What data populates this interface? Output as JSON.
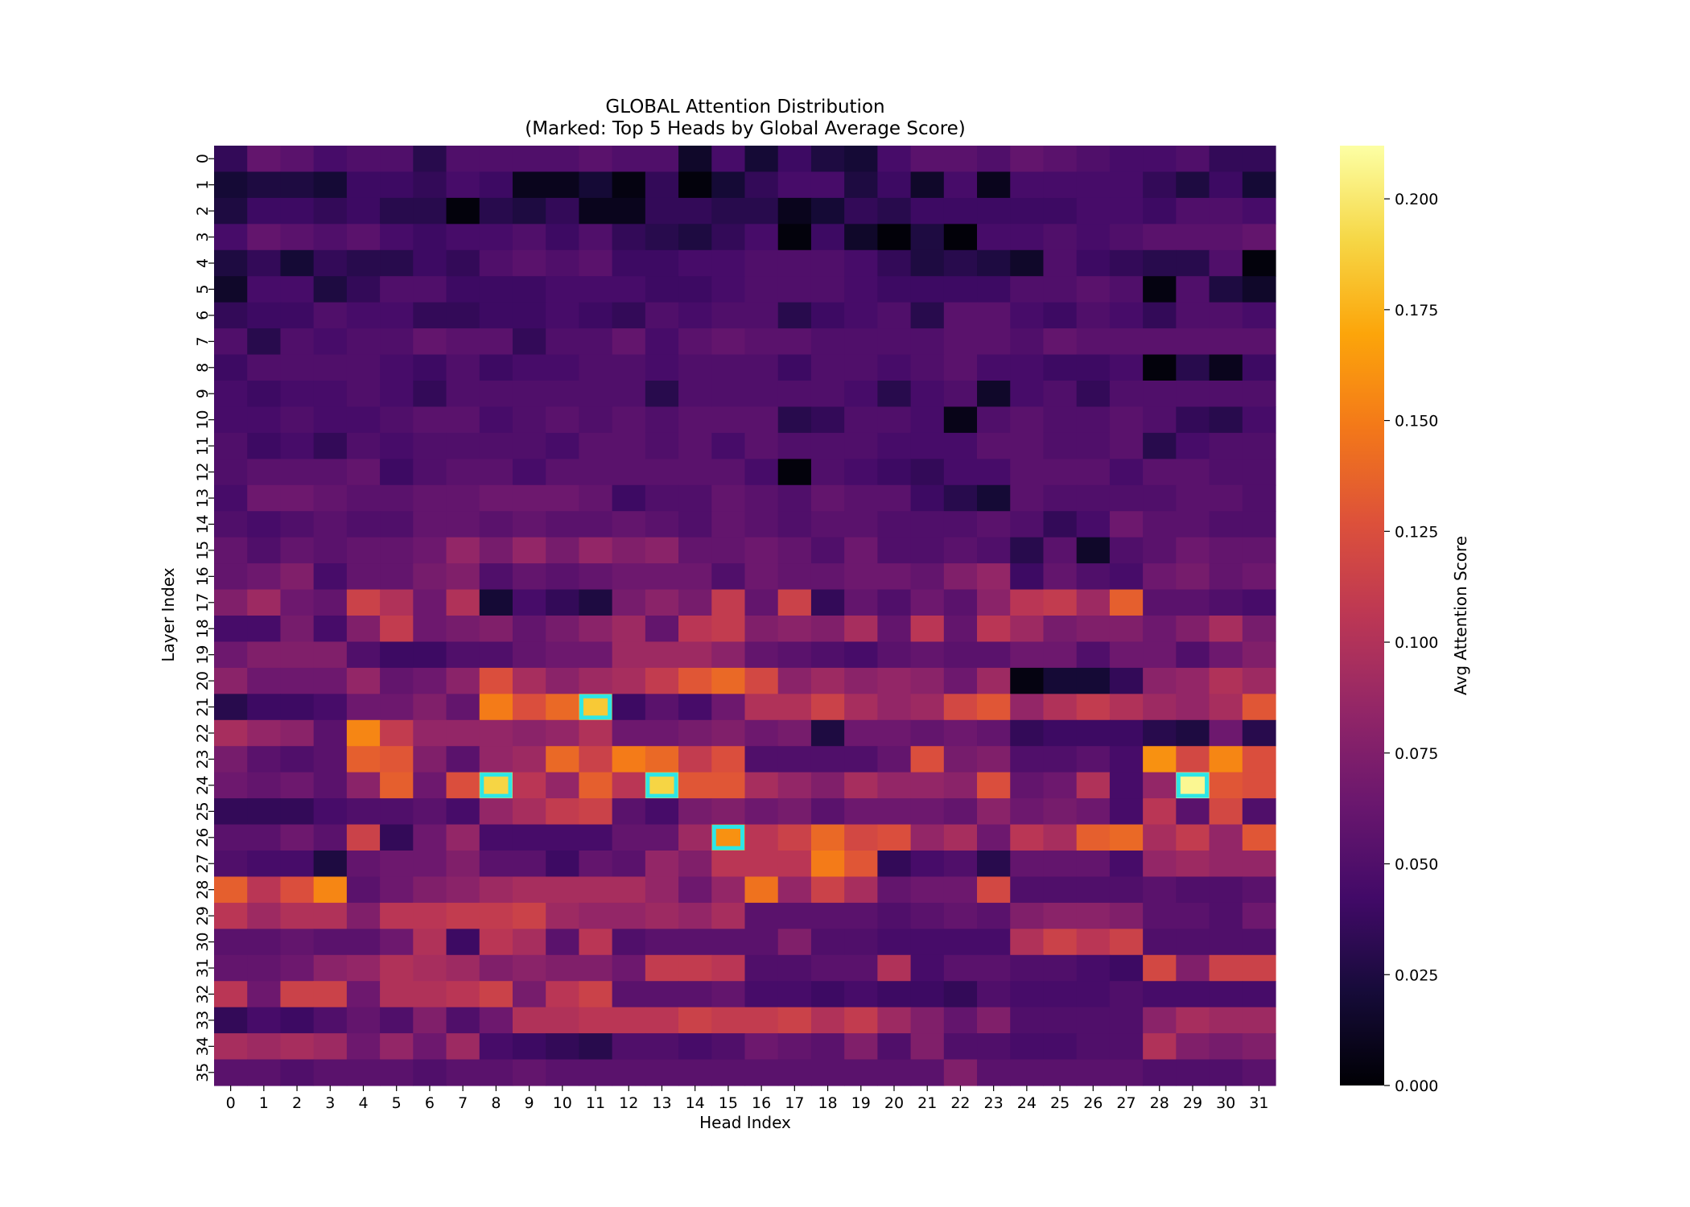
{
  "chart_data": {
    "type": "heatmap",
    "title": "GLOBAL Attention Distribution",
    "subtitle": "(Marked: Top 5 Heads by Global Average Score)",
    "xlabel": "Head Index",
    "ylabel": "Layer Index",
    "colorbar_label": "Avg Attention Score",
    "colormap": "inferno",
    "vmin": 0.0,
    "vmax": 0.212,
    "colorbar_ticks": [
      "0.000",
      "0.025",
      "0.050",
      "0.075",
      "0.100",
      "0.125",
      "0.150",
      "0.175",
      "0.200"
    ],
    "colorbar_tick_values": [
      0.0,
      0.025,
      0.05,
      0.075,
      0.1,
      0.125,
      0.15,
      0.175,
      0.2
    ],
    "x_ticks": [
      "0",
      "1",
      "2",
      "3",
      "4",
      "5",
      "6",
      "7",
      "8",
      "9",
      "10",
      "11",
      "12",
      "13",
      "14",
      "15",
      "16",
      "17",
      "18",
      "19",
      "20",
      "21",
      "22",
      "23",
      "24",
      "25",
      "26",
      "27",
      "28",
      "29",
      "30",
      "31"
    ],
    "y_ticks": [
      "0",
      "1",
      "2",
      "3",
      "4",
      "5",
      "6",
      "7",
      "8",
      "9",
      "10",
      "11",
      "12",
      "13",
      "14",
      "15",
      "16",
      "17",
      "18",
      "19",
      "20",
      "21",
      "22",
      "23",
      "24",
      "25",
      "26",
      "27",
      "28",
      "29",
      "30",
      "31",
      "32",
      "33",
      "34",
      "35"
    ],
    "highlight_color": "#2ee6e6",
    "highlighted_cells": [
      {
        "layer": 21,
        "head": 11
      },
      {
        "layer": 24,
        "head": 8
      },
      {
        "layer": 24,
        "head": 13
      },
      {
        "layer": 24,
        "head": 29
      },
      {
        "layer": 26,
        "head": 15
      }
    ],
    "values": [
      [
        0.035,
        0.06,
        0.055,
        0.045,
        0.05,
        0.05,
        0.03,
        0.05,
        0.05,
        0.05,
        0.05,
        0.055,
        0.05,
        0.05,
        0.015,
        0.045,
        0.02,
        0.04,
        0.025,
        0.02,
        0.045,
        0.055,
        0.055,
        0.05,
        0.06,
        0.055,
        0.05,
        0.045,
        0.045,
        0.05,
        0.035,
        0.035
      ],
      [
        0.02,
        0.025,
        0.025,
        0.02,
        0.04,
        0.04,
        0.035,
        0.045,
        0.04,
        0.01,
        0.01,
        0.02,
        0.005,
        0.035,
        0.003,
        0.02,
        0.035,
        0.045,
        0.045,
        0.025,
        0.04,
        0.015,
        0.045,
        0.01,
        0.045,
        0.045,
        0.045,
        0.045,
        0.035,
        0.025,
        0.04,
        0.02
      ],
      [
        0.025,
        0.04,
        0.04,
        0.035,
        0.04,
        0.03,
        0.03,
        0.003,
        0.03,
        0.025,
        0.035,
        0.01,
        0.01,
        0.035,
        0.035,
        0.03,
        0.03,
        0.01,
        0.02,
        0.035,
        0.03,
        0.04,
        0.04,
        0.04,
        0.04,
        0.04,
        0.045,
        0.045,
        0.04,
        0.05,
        0.05,
        0.045
      ],
      [
        0.045,
        0.06,
        0.055,
        0.05,
        0.055,
        0.045,
        0.04,
        0.045,
        0.045,
        0.05,
        0.04,
        0.05,
        0.035,
        0.03,
        0.025,
        0.035,
        0.045,
        0.003,
        0.04,
        0.015,
        0.002,
        0.025,
        0.002,
        0.045,
        0.045,
        0.05,
        0.045,
        0.05,
        0.055,
        0.055,
        0.055,
        0.06
      ],
      [
        0.025,
        0.035,
        0.02,
        0.035,
        0.03,
        0.03,
        0.04,
        0.035,
        0.05,
        0.055,
        0.05,
        0.055,
        0.04,
        0.04,
        0.045,
        0.045,
        0.05,
        0.05,
        0.05,
        0.045,
        0.035,
        0.025,
        0.03,
        0.025,
        0.015,
        0.05,
        0.04,
        0.035,
        0.03,
        0.03,
        0.05,
        0.003
      ],
      [
        0.015,
        0.045,
        0.045,
        0.025,
        0.035,
        0.05,
        0.05,
        0.04,
        0.04,
        0.04,
        0.045,
        0.045,
        0.045,
        0.04,
        0.04,
        0.045,
        0.05,
        0.05,
        0.05,
        0.045,
        0.04,
        0.04,
        0.04,
        0.04,
        0.05,
        0.05,
        0.055,
        0.05,
        0.005,
        0.05,
        0.025,
        0.015
      ],
      [
        0.035,
        0.04,
        0.04,
        0.05,
        0.045,
        0.045,
        0.035,
        0.035,
        0.04,
        0.04,
        0.045,
        0.04,
        0.035,
        0.05,
        0.045,
        0.05,
        0.05,
        0.03,
        0.04,
        0.045,
        0.05,
        0.03,
        0.055,
        0.055,
        0.045,
        0.04,
        0.05,
        0.045,
        0.035,
        0.05,
        0.05,
        0.045
      ],
      [
        0.05,
        0.03,
        0.05,
        0.045,
        0.05,
        0.05,
        0.06,
        0.055,
        0.055,
        0.035,
        0.05,
        0.05,
        0.06,
        0.045,
        0.055,
        0.06,
        0.055,
        0.055,
        0.05,
        0.05,
        0.05,
        0.05,
        0.055,
        0.055,
        0.05,
        0.06,
        0.055,
        0.055,
        0.055,
        0.055,
        0.055,
        0.055
      ],
      [
        0.04,
        0.05,
        0.05,
        0.05,
        0.05,
        0.045,
        0.04,
        0.05,
        0.04,
        0.045,
        0.045,
        0.05,
        0.05,
        0.045,
        0.05,
        0.05,
        0.05,
        0.04,
        0.05,
        0.05,
        0.045,
        0.05,
        0.055,
        0.045,
        0.045,
        0.04,
        0.04,
        0.045,
        0.003,
        0.03,
        0.01,
        0.04
      ],
      [
        0.045,
        0.04,
        0.045,
        0.045,
        0.05,
        0.045,
        0.035,
        0.05,
        0.05,
        0.05,
        0.05,
        0.05,
        0.05,
        0.03,
        0.05,
        0.05,
        0.05,
        0.05,
        0.05,
        0.045,
        0.03,
        0.045,
        0.05,
        0.015,
        0.045,
        0.05,
        0.035,
        0.05,
        0.05,
        0.05,
        0.05,
        0.05
      ],
      [
        0.045,
        0.045,
        0.05,
        0.045,
        0.045,
        0.05,
        0.055,
        0.055,
        0.045,
        0.05,
        0.055,
        0.05,
        0.055,
        0.05,
        0.055,
        0.055,
        0.055,
        0.03,
        0.035,
        0.05,
        0.05,
        0.045,
        0.008,
        0.05,
        0.055,
        0.05,
        0.05,
        0.055,
        0.05,
        0.035,
        0.03,
        0.045
      ],
      [
        0.05,
        0.04,
        0.045,
        0.035,
        0.05,
        0.045,
        0.05,
        0.05,
        0.05,
        0.05,
        0.045,
        0.055,
        0.055,
        0.05,
        0.055,
        0.045,
        0.055,
        0.05,
        0.05,
        0.05,
        0.045,
        0.045,
        0.045,
        0.055,
        0.055,
        0.05,
        0.05,
        0.055,
        0.03,
        0.045,
        0.05,
        0.05
      ],
      [
        0.05,
        0.055,
        0.055,
        0.055,
        0.06,
        0.04,
        0.05,
        0.055,
        0.055,
        0.045,
        0.055,
        0.055,
        0.055,
        0.055,
        0.055,
        0.055,
        0.045,
        0.003,
        0.05,
        0.045,
        0.04,
        0.035,
        0.045,
        0.045,
        0.055,
        0.055,
        0.055,
        0.045,
        0.055,
        0.055,
        0.05,
        0.05
      ],
      [
        0.045,
        0.065,
        0.065,
        0.06,
        0.055,
        0.055,
        0.06,
        0.06,
        0.065,
        0.065,
        0.065,
        0.06,
        0.04,
        0.05,
        0.05,
        0.06,
        0.055,
        0.05,
        0.06,
        0.055,
        0.055,
        0.04,
        0.03,
        0.02,
        0.055,
        0.05,
        0.05,
        0.05,
        0.05,
        0.055,
        0.055,
        0.05
      ],
      [
        0.05,
        0.045,
        0.05,
        0.055,
        0.05,
        0.05,
        0.06,
        0.06,
        0.055,
        0.06,
        0.055,
        0.055,
        0.06,
        0.055,
        0.05,
        0.06,
        0.055,
        0.05,
        0.055,
        0.055,
        0.05,
        0.05,
        0.05,
        0.055,
        0.05,
        0.035,
        0.045,
        0.065,
        0.055,
        0.055,
        0.05,
        0.05
      ],
      [
        0.06,
        0.05,
        0.06,
        0.055,
        0.06,
        0.06,
        0.065,
        0.085,
        0.07,
        0.085,
        0.07,
        0.085,
        0.075,
        0.08,
        0.06,
        0.06,
        0.065,
        0.06,
        0.05,
        0.065,
        0.05,
        0.05,
        0.055,
        0.05,
        0.03,
        0.055,
        0.015,
        0.05,
        0.055,
        0.065,
        0.06,
        0.06
      ],
      [
        0.06,
        0.065,
        0.075,
        0.045,
        0.06,
        0.06,
        0.07,
        0.075,
        0.05,
        0.06,
        0.055,
        0.06,
        0.065,
        0.065,
        0.065,
        0.05,
        0.065,
        0.06,
        0.06,
        0.065,
        0.065,
        0.06,
        0.075,
        0.085,
        0.04,
        0.06,
        0.05,
        0.045,
        0.065,
        0.07,
        0.06,
        0.065
      ],
      [
        0.075,
        0.09,
        0.065,
        0.06,
        0.115,
        0.1,
        0.065,
        0.1,
        0.02,
        0.045,
        0.035,
        0.025,
        0.07,
        0.08,
        0.07,
        0.11,
        0.06,
        0.115,
        0.035,
        0.06,
        0.05,
        0.065,
        0.055,
        0.08,
        0.105,
        0.11,
        0.09,
        0.135,
        0.055,
        0.055,
        0.05,
        0.045
      ],
      [
        0.045,
        0.045,
        0.07,
        0.045,
        0.075,
        0.11,
        0.065,
        0.07,
        0.075,
        0.06,
        0.07,
        0.08,
        0.09,
        0.06,
        0.105,
        0.11,
        0.075,
        0.08,
        0.075,
        0.095,
        0.06,
        0.105,
        0.06,
        0.105,
        0.09,
        0.07,
        0.075,
        0.075,
        0.065,
        0.075,
        0.095,
        0.07
      ],
      [
        0.065,
        0.075,
        0.075,
        0.075,
        0.05,
        0.04,
        0.04,
        0.05,
        0.05,
        0.06,
        0.065,
        0.065,
        0.09,
        0.09,
        0.09,
        0.08,
        0.06,
        0.055,
        0.05,
        0.045,
        0.055,
        0.06,
        0.055,
        0.055,
        0.065,
        0.065,
        0.05,
        0.065,
        0.065,
        0.05,
        0.065,
        0.075
      ],
      [
        0.08,
        0.065,
        0.065,
        0.065,
        0.085,
        0.06,
        0.065,
        0.08,
        0.125,
        0.095,
        0.08,
        0.09,
        0.095,
        0.11,
        0.13,
        0.14,
        0.12,
        0.08,
        0.09,
        0.08,
        0.085,
        0.08,
        0.065,
        0.09,
        0.005,
        0.02,
        0.02,
        0.035,
        0.08,
        0.085,
        0.1,
        0.09
      ],
      [
        0.03,
        0.04,
        0.04,
        0.045,
        0.065,
        0.065,
        0.075,
        0.06,
        0.15,
        0.125,
        0.14,
        0.185,
        0.04,
        0.055,
        0.045,
        0.065,
        0.1,
        0.1,
        0.115,
        0.095,
        0.085,
        0.09,
        0.12,
        0.13,
        0.085,
        0.1,
        0.11,
        0.1,
        0.09,
        0.085,
        0.095,
        0.13
      ],
      [
        0.095,
        0.085,
        0.08,
        0.055,
        0.155,
        0.11,
        0.085,
        0.085,
        0.085,
        0.08,
        0.085,
        0.1,
        0.065,
        0.065,
        0.07,
        0.075,
        0.065,
        0.07,
        0.025,
        0.065,
        0.065,
        0.06,
        0.065,
        0.06,
        0.035,
        0.04,
        0.04,
        0.04,
        0.03,
        0.025,
        0.065,
        0.03
      ],
      [
        0.07,
        0.055,
        0.05,
        0.055,
        0.135,
        0.13,
        0.075,
        0.055,
        0.085,
        0.09,
        0.14,
        0.115,
        0.15,
        0.14,
        0.11,
        0.125,
        0.05,
        0.05,
        0.05,
        0.05,
        0.06,
        0.125,
        0.07,
        0.075,
        0.05,
        0.05,
        0.055,
        0.045,
        0.16,
        0.12,
        0.155,
        0.125
      ],
      [
        0.065,
        0.06,
        0.065,
        0.055,
        0.08,
        0.135,
        0.065,
        0.125,
        0.19,
        0.105,
        0.085,
        0.135,
        0.105,
        0.19,
        0.13,
        0.13,
        0.095,
        0.085,
        0.075,
        0.095,
        0.085,
        0.085,
        0.08,
        0.125,
        0.06,
        0.065,
        0.1,
        0.045,
        0.085,
        0.208,
        0.13,
        0.125
      ],
      [
        0.035,
        0.035,
        0.035,
        0.045,
        0.05,
        0.05,
        0.055,
        0.045,
        0.085,
        0.095,
        0.11,
        0.115,
        0.055,
        0.045,
        0.07,
        0.075,
        0.065,
        0.07,
        0.055,
        0.065,
        0.065,
        0.065,
        0.06,
        0.08,
        0.065,
        0.07,
        0.065,
        0.045,
        0.105,
        0.055,
        0.12,
        0.05
      ],
      [
        0.055,
        0.055,
        0.065,
        0.055,
        0.115,
        0.035,
        0.065,
        0.085,
        0.045,
        0.045,
        0.045,
        0.045,
        0.06,
        0.06,
        0.09,
        0.16,
        0.105,
        0.115,
        0.14,
        0.12,
        0.125,
        0.085,
        0.095,
        0.065,
        0.105,
        0.095,
        0.135,
        0.14,
        0.095,
        0.11,
        0.085,
        0.13
      ],
      [
        0.05,
        0.045,
        0.045,
        0.025,
        0.06,
        0.065,
        0.065,
        0.075,
        0.055,
        0.055,
        0.04,
        0.06,
        0.055,
        0.085,
        0.075,
        0.105,
        0.105,
        0.105,
        0.15,
        0.13,
        0.035,
        0.045,
        0.05,
        0.03,
        0.06,
        0.06,
        0.06,
        0.045,
        0.085,
        0.09,
        0.085,
        0.085
      ],
      [
        0.135,
        0.105,
        0.125,
        0.155,
        0.055,
        0.065,
        0.075,
        0.08,
        0.09,
        0.095,
        0.095,
        0.095,
        0.095,
        0.085,
        0.065,
        0.085,
        0.145,
        0.085,
        0.115,
        0.095,
        0.06,
        0.065,
        0.065,
        0.12,
        0.05,
        0.05,
        0.05,
        0.05,
        0.055,
        0.05,
        0.05,
        0.055
      ],
      [
        0.105,
        0.09,
        0.1,
        0.1,
        0.075,
        0.105,
        0.105,
        0.11,
        0.11,
        0.115,
        0.09,
        0.085,
        0.085,
        0.09,
        0.085,
        0.095,
        0.055,
        0.055,
        0.055,
        0.055,
        0.05,
        0.055,
        0.06,
        0.055,
        0.075,
        0.08,
        0.08,
        0.075,
        0.055,
        0.055,
        0.05,
        0.065
      ],
      [
        0.055,
        0.055,
        0.06,
        0.055,
        0.055,
        0.065,
        0.1,
        0.04,
        0.105,
        0.095,
        0.055,
        0.105,
        0.05,
        0.055,
        0.055,
        0.055,
        0.055,
        0.075,
        0.05,
        0.05,
        0.045,
        0.045,
        0.045,
        0.045,
        0.1,
        0.115,
        0.105,
        0.115,
        0.05,
        0.05,
        0.05,
        0.05
      ],
      [
        0.06,
        0.06,
        0.065,
        0.08,
        0.085,
        0.1,
        0.095,
        0.09,
        0.075,
        0.08,
        0.075,
        0.075,
        0.065,
        0.11,
        0.11,
        0.105,
        0.05,
        0.05,
        0.055,
        0.055,
        0.1,
        0.045,
        0.055,
        0.055,
        0.05,
        0.05,
        0.045,
        0.04,
        0.12,
        0.075,
        0.115,
        0.115
      ],
      [
        0.105,
        0.065,
        0.115,
        0.115,
        0.065,
        0.1,
        0.1,
        0.105,
        0.115,
        0.07,
        0.105,
        0.115,
        0.055,
        0.055,
        0.055,
        0.06,
        0.045,
        0.045,
        0.04,
        0.045,
        0.04,
        0.04,
        0.035,
        0.05,
        0.045,
        0.045,
        0.045,
        0.05,
        0.045,
        0.045,
        0.045,
        0.045
      ],
      [
        0.035,
        0.045,
        0.04,
        0.05,
        0.06,
        0.05,
        0.075,
        0.05,
        0.065,
        0.1,
        0.1,
        0.105,
        0.105,
        0.105,
        0.115,
        0.11,
        0.11,
        0.115,
        0.1,
        0.11,
        0.09,
        0.075,
        0.06,
        0.075,
        0.05,
        0.05,
        0.05,
        0.05,
        0.08,
        0.095,
        0.09,
        0.09
      ],
      [
        0.095,
        0.09,
        0.095,
        0.09,
        0.065,
        0.085,
        0.065,
        0.09,
        0.045,
        0.04,
        0.035,
        0.03,
        0.05,
        0.05,
        0.045,
        0.05,
        0.065,
        0.06,
        0.055,
        0.075,
        0.05,
        0.075,
        0.05,
        0.05,
        0.045,
        0.045,
        0.05,
        0.05,
        0.1,
        0.075,
        0.07,
        0.075
      ],
      [
        0.055,
        0.055,
        0.05,
        0.055,
        0.055,
        0.055,
        0.05,
        0.055,
        0.055,
        0.06,
        0.055,
        0.055,
        0.055,
        0.055,
        0.055,
        0.055,
        0.055,
        0.055,
        0.055,
        0.055,
        0.055,
        0.055,
        0.075,
        0.055,
        0.055,
        0.055,
        0.055,
        0.055,
        0.05,
        0.05,
        0.05,
        0.055
      ]
    ]
  }
}
